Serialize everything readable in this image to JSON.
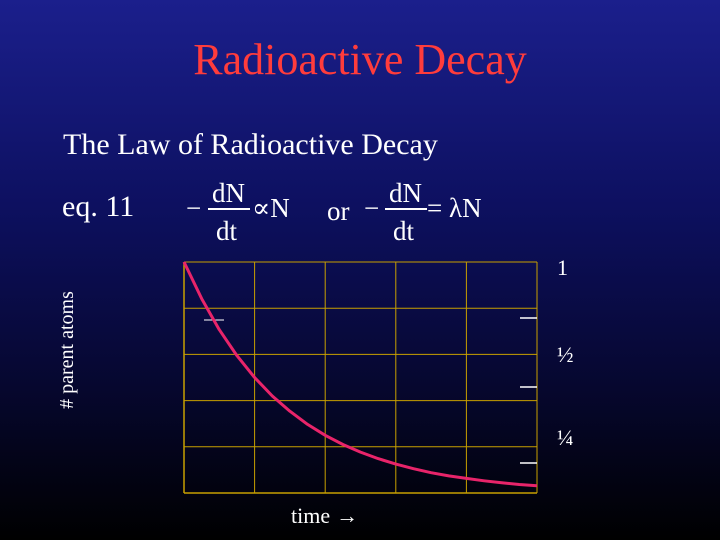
{
  "slide_title": "Radioactive Decay",
  "subtitle": "The Law of Radioactive Decay",
  "equation": {
    "label": "eq. 11",
    "minus": "−",
    "numerator": "dN",
    "denominator": "dt",
    "proportional": "∝N",
    "or": "or",
    "equals_lambda": "= λN"
  },
  "colors": {
    "title": "#ff3c3c",
    "curve": "#e8246a",
    "grid": "#c8a000"
  },
  "chart_data": {
    "type": "line",
    "title": "",
    "xlabel": "time",
    "xlabel_arrow": "→",
    "ylabel": "# parent atoms",
    "y_tick_labels": [
      "1",
      "½",
      "¼"
    ],
    "y_tick_values": [
      1,
      0.5,
      0.25
    ],
    "xlim": [
      0,
      5
    ],
    "ylim": [
      0,
      1
    ],
    "grid": true,
    "series": [
      {
        "x": [
          0,
          0.25,
          0.5,
          0.75,
          1,
          1.25,
          1.5,
          1.75,
          2,
          2.25,
          2.5,
          2.75,
          3,
          3.25,
          3.5,
          3.75,
          4,
          4.25,
          4.5,
          4.75,
          5
        ],
        "y": [
          1.0,
          0.841,
          0.707,
          0.595,
          0.5,
          0.42,
          0.354,
          0.297,
          0.25,
          0.21,
          0.177,
          0.149,
          0.125,
          0.105,
          0.088,
          0.074,
          0.063,
          0.053,
          0.044,
          0.037,
          0.031
        ]
      }
    ]
  }
}
